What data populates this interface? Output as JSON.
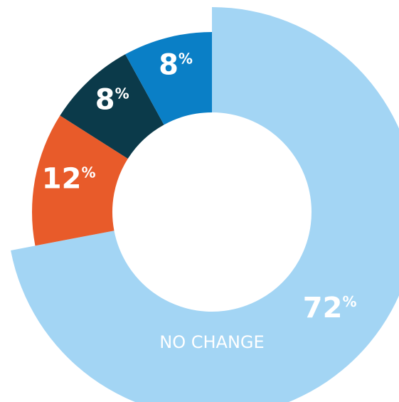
{
  "chart_data": {
    "type": "donut",
    "categories": [
      "NO CHANGE",
      null,
      null,
      null
    ],
    "values": [
      72,
      12,
      8,
      8
    ],
    "value_labels": [
      "72%",
      "12%",
      "8%",
      "8%"
    ],
    "colors": [
      "#a3d5f4",
      "#e85b2a",
      "#0b3a4a",
      "#0a7fc6"
    ]
  }
}
